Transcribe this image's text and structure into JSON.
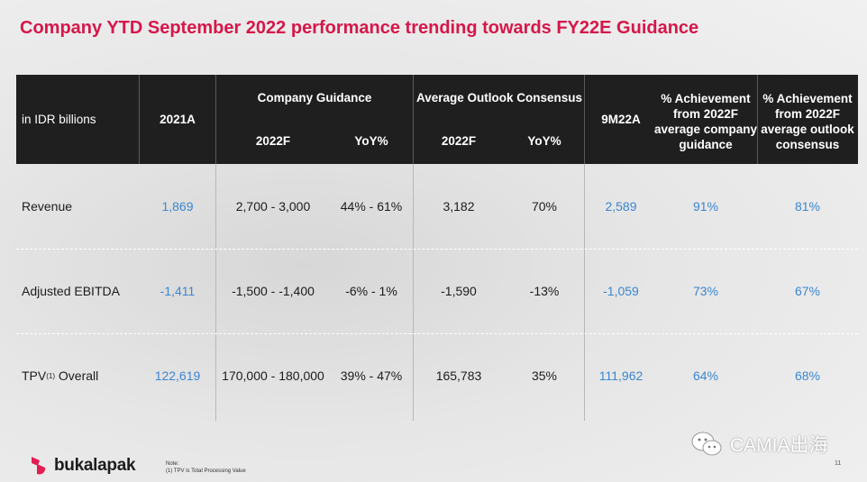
{
  "title": "Company YTD September 2022 performance trending towards FY22E Guidance",
  "chart_data": {
    "type": "table",
    "title": "Company YTD September 2022 performance trending towards FY22E Guidance",
    "unit_label": "in IDR billions",
    "headers": {
      "col_2021a": "2021A",
      "company_guidance": "Company Guidance",
      "cg_2022f": "2022F",
      "cg_yoy": "YoY%",
      "avg_outlook": "Average Outlook Consensus",
      "ao_2022f": "2022F",
      "ao_yoy": "YoY%",
      "col_9m22a": "9M22A",
      "ach_guidance": [
        "% Achievement",
        "from 2022F",
        "average company",
        "guidance"
      ],
      "ach_consensus": [
        "% Achievement",
        "from 2022F",
        "average outlook",
        "consensus"
      ]
    },
    "rows": [
      {
        "label": "Revenue",
        "label_sup": "",
        "label_suffix": "",
        "a2021": "1,869",
        "cg_2022f": "2,700 - 3,000",
        "cg_yoy": "44% - 61%",
        "ao_2022f": "3,182",
        "ao_yoy": "70%",
        "m9_2022": "2,589",
        "ach_guidance": "91%",
        "ach_consensus": "81%"
      },
      {
        "label": "Adjusted EBITDA",
        "label_sup": "",
        "label_suffix": "",
        "a2021": "-1,411",
        "cg_2022f": "-1,500 - -1,400",
        "cg_yoy": "-6% - 1%",
        "ao_2022f": "-1,590",
        "ao_yoy": "-13%",
        "m9_2022": "-1,059",
        "ach_guidance": "73%",
        "ach_consensus": "67%"
      },
      {
        "label": "TPV",
        "label_sup": "(1)",
        "label_suffix": " Overall",
        "a2021": "122,619",
        "cg_2022f": "170,000 - 180,000",
        "cg_yoy": "39% - 47%",
        "ao_2022f": "165,783",
        "ao_yoy": "35%",
        "m9_2022": "111,962",
        "ach_guidance": "64%",
        "ach_consensus": "68%"
      }
    ]
  },
  "footer": {
    "logo_text": "bukalapak",
    "note_title": "Note:",
    "note_line": "(1)    TPV is Total Processing Value",
    "watermark": "CAMIA出海",
    "page_number": "11"
  },
  "colors": {
    "title": "#d5174a",
    "header_bg": "#1f1f1f",
    "blue": "#3b86cf",
    "logo": "#e31e52"
  }
}
